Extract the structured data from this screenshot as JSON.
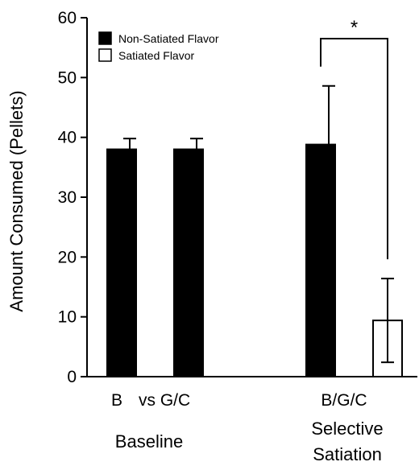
{
  "chart_data": {
    "type": "bar",
    "title": "",
    "ylabel": "Amount Consumed (Pellets)",
    "ylim": [
      0,
      60
    ],
    "yticks": [
      0,
      10,
      20,
      30,
      40,
      50,
      60
    ],
    "grid": false,
    "legend_position": "top-left",
    "legend": [
      {
        "name": "Non-Satiated Flavor",
        "color": "#000000",
        "fill": "solid"
      },
      {
        "name": "Satiated Flavor",
        "color": "#ffffff",
        "fill": "hollow"
      }
    ],
    "bars": [
      {
        "label": "B",
        "value": 38,
        "error": 1.8,
        "style": "filled"
      },
      {
        "label": "G/C",
        "value": 38,
        "error": 1.8,
        "style": "filled"
      },
      {
        "label": "B/G/C",
        "value": 38.8,
        "error": 9.8,
        "style": "filled"
      },
      {
        "label": "",
        "value": 9.4,
        "error": 7.0,
        "style": "hollow"
      }
    ],
    "category_labels": [
      {
        "text": "B"
      },
      {
        "text": "vs G/C"
      },
      {
        "text": "B/G/C"
      }
    ],
    "group_labels": [
      {
        "lines": [
          "Baseline"
        ]
      },
      {
        "lines": [
          "Selective",
          "Satiation"
        ]
      }
    ],
    "significance": {
      "symbol": "*",
      "between_bars": [
        2,
        3
      ]
    },
    "colors": {
      "filled": "#000000",
      "hollow": "#ffffff",
      "axis": "#000000"
    }
  }
}
